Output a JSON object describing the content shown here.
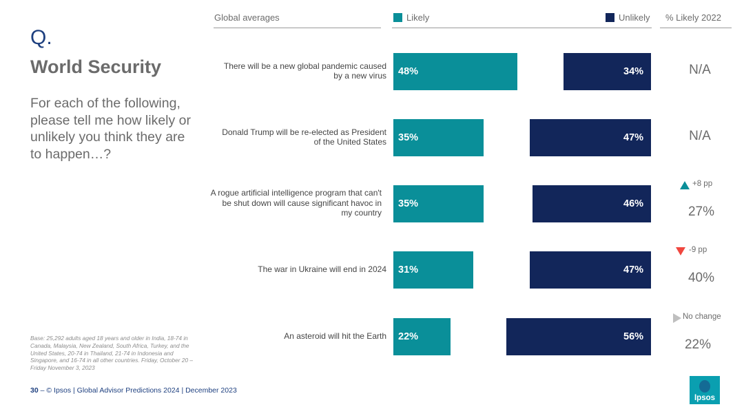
{
  "slide": {
    "q_letter": "Q.",
    "title": "World Security",
    "question": "For each of the following, please tell me how likely or unlikely you think they are to happen…?",
    "base_note": "Base: 25,292 adults aged 18 years and older in India, 18-74 in Canada, Malaysia, New Zealand, South Africa, Turkey, and the United States, 20-74 in Thailand, 21-74 in Indonesia and Singapore, and 16-74 in all other countries. Friday, October 20 – Friday November 3, 2023",
    "footer_page": "30",
    "footer_dash": " – ",
    "footer_text": "© Ipsos | Global Advisor Predictions 2024 | December 2023",
    "logo_text": "Ipsos"
  },
  "colors": {
    "likely": "#0a8f99",
    "unlikely": "#12265a",
    "up": "#0a8f99",
    "down": "#f0473f",
    "same": "#bfbfbf"
  },
  "chart_data": {
    "type": "bar",
    "orientation": "horizontal",
    "header_left": "Global averages",
    "header_right": "% Likely 2022",
    "categories": [
      "There will be a new global pandemic caused by a new virus",
      "Donald Trump will be re-elected as President of the United States",
      "A rogue artificial intelligence program that can't be shut down will cause significant havoc in my country",
      "The war in Ukraine will end in 2024",
      "An asteroid will hit the Earth"
    ],
    "series": [
      {
        "name": "Likely",
        "values": [
          48,
          35,
          35,
          31,
          22
        ],
        "labels": [
          "48%",
          "35%",
          "35%",
          "31%",
          "22%"
        ]
      },
      {
        "name": "Unlikely",
        "values": [
          34,
          47,
          46,
          47,
          56
        ],
        "labels": [
          "34%",
          "47%",
          "46%",
          "47%",
          "56%"
        ]
      }
    ],
    "likely_2022": [
      "N/A",
      "N/A",
      "27%",
      "40%",
      "22%"
    ],
    "change": [
      {
        "direction": "none",
        "label": ""
      },
      {
        "direction": "none",
        "label": ""
      },
      {
        "direction": "up",
        "label": "+8 pp"
      },
      {
        "direction": "down",
        "label": "-9 pp"
      },
      {
        "direction": "same",
        "label": "No change"
      }
    ],
    "xlim": [
      0,
      100
    ]
  }
}
